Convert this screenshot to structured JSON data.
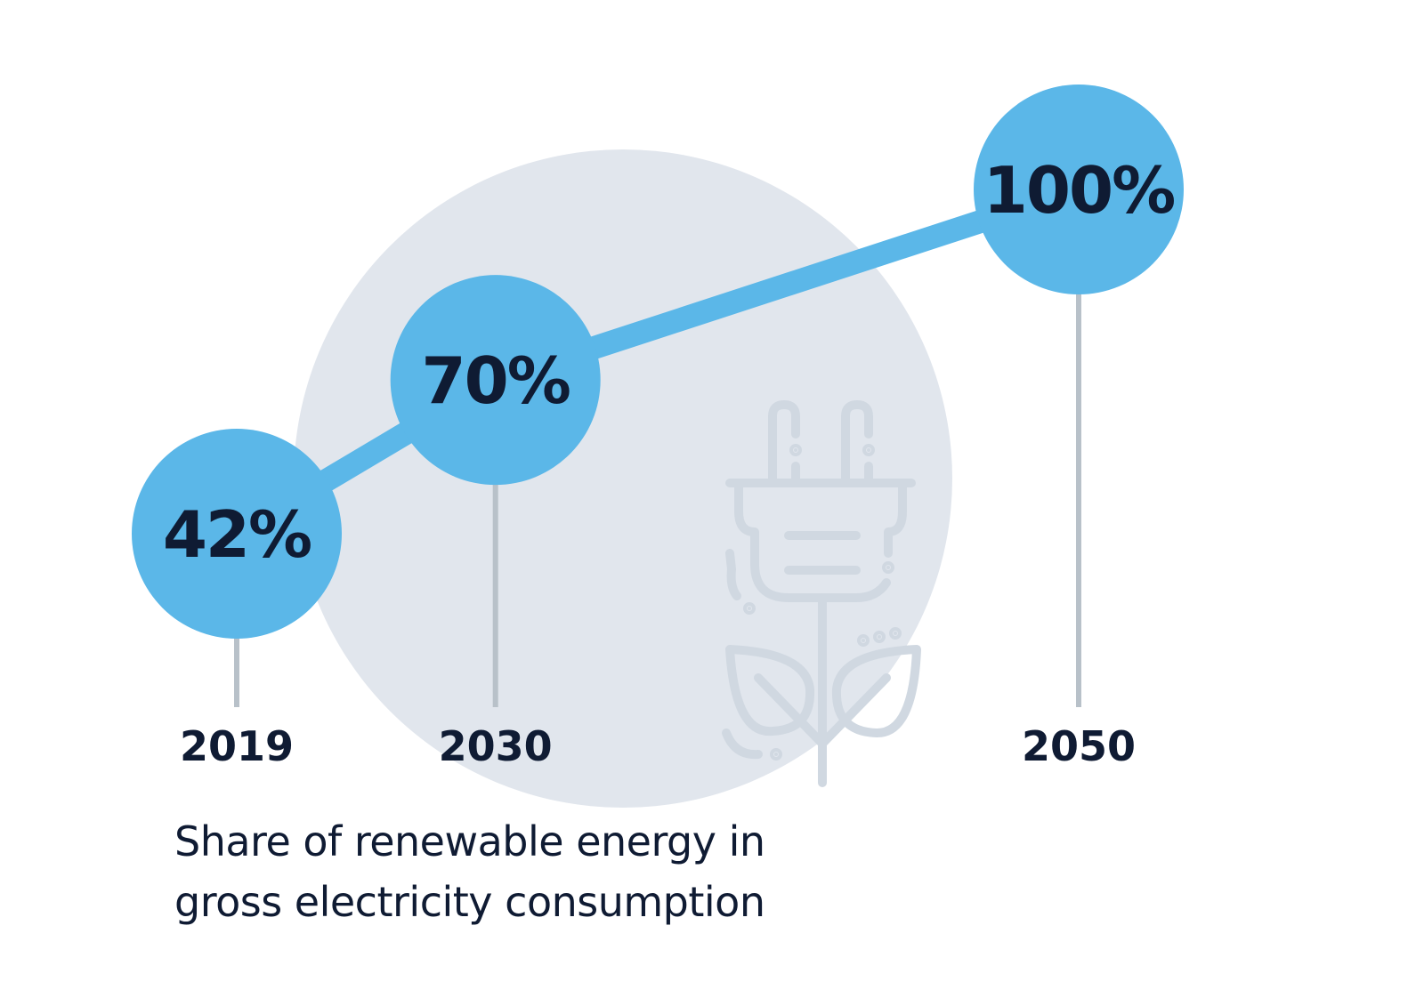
{
  "colors": {
    "accent": "#5bb7e8",
    "text_dark": "#0f1b33",
    "background_circle": "#e1e6ed",
    "stem": "#b8c1c9",
    "icon_stroke": "#d0d8e1"
  },
  "icon": "plug-with-leaves-icon",
  "caption": {
    "line1": "Share of renewable energy in",
    "line2": "gross electricity consumption"
  },
  "chart_data": {
    "type": "line",
    "categories": [
      "2019",
      "2030",
      "2050"
    ],
    "series": [
      {
        "values": [
          42,
          70,
          100
        ],
        "labels": [
          "42%",
          "70%",
          "100%"
        ]
      }
    ],
    "ylim": [
      0,
      100
    ],
    "grid": false,
    "title": "",
    "xlabel": "",
    "ylabel": ""
  }
}
